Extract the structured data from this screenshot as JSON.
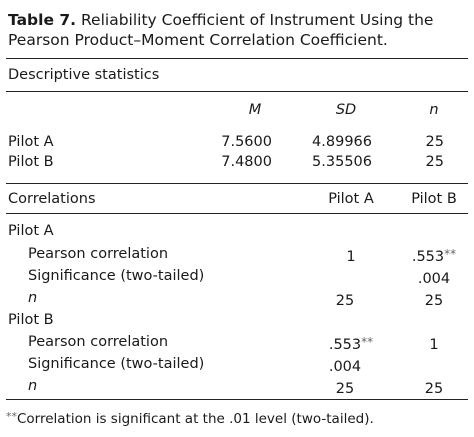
{
  "caption": {
    "label": "Table 7.",
    "text": "Reliability Coefficient of Instrument Using the Pearson Product–Moment Correlation Coefficient."
  },
  "descriptive": {
    "heading": "Descriptive statistics",
    "columns": [
      "M",
      "SD",
      "n"
    ],
    "rows": [
      {
        "label": "Pilot A",
        "m": "7.5600",
        "sd": "4.89966",
        "n": "25"
      },
      {
        "label": "Pilot B",
        "m": "7.4800",
        "sd": "5.35506",
        "n": "25"
      }
    ]
  },
  "correlations": {
    "heading": "Correlations",
    "columns": [
      "Pilot A",
      "Pilot B"
    ],
    "groups": [
      {
        "label": "Pilot A",
        "rows": [
          {
            "label": "Pearson correlation",
            "a": "1",
            "a_sup": "",
            "b": ".553",
            "b_sup": "**"
          },
          {
            "label": "Significance (two-tailed)",
            "a": "",
            "a_sup": "",
            "b": ".004",
            "b_sup": ""
          },
          {
            "label": "n",
            "a": "25",
            "a_sup": "",
            "b": "25",
            "b_sup": ""
          }
        ]
      },
      {
        "label": "Pilot B",
        "rows": [
          {
            "label": "Pearson correlation",
            "a": ".553",
            "a_sup": "**",
            "b": "1",
            "b_sup": ""
          },
          {
            "label": "Significance (two-tailed)",
            "a": ".004",
            "a_sup": "",
            "b": "",
            "b_sup": ""
          },
          {
            "label": "n",
            "a": "25",
            "a_sup": "",
            "b": "25",
            "b_sup": ""
          }
        ]
      }
    ]
  },
  "footnote": {
    "marker": "**",
    "text": "Correlation is significant at the .01 level (two-tailed)."
  }
}
